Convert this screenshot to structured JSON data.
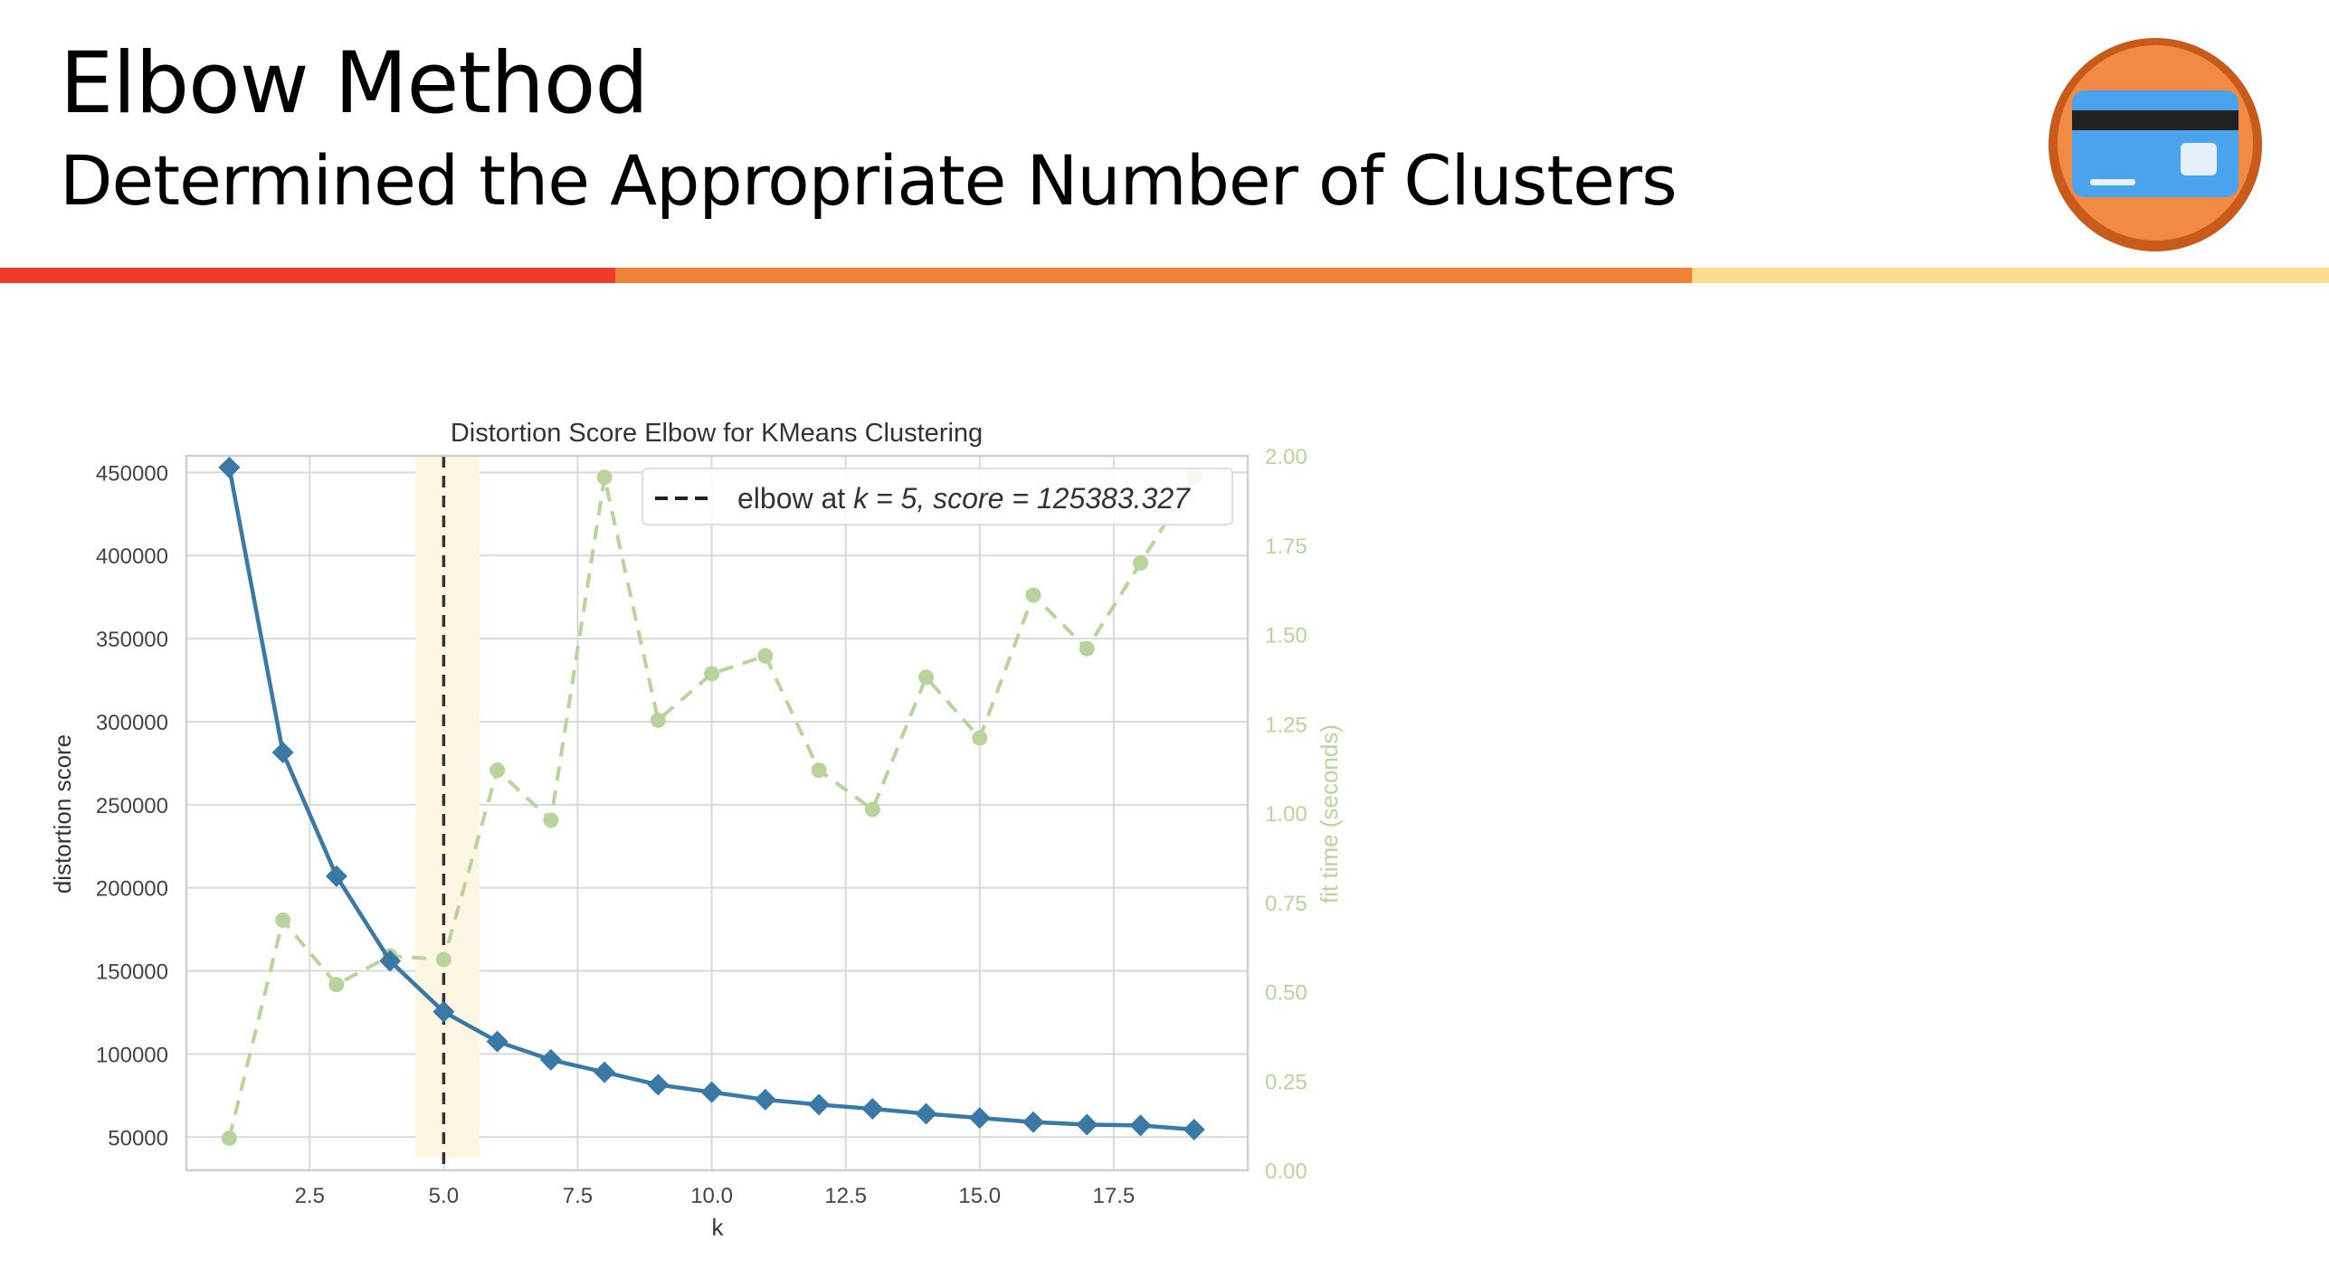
{
  "slide": {
    "title": "Elbow Method",
    "subtitle": "Determined the Appropriate Number of Clusters"
  },
  "colors": {
    "bar_red": "#ee3a2a",
    "bar_orange": "#f08236",
    "bar_yellow": "#fbdb8c",
    "distortion": "#3a78a6",
    "fit_time": "#b8d39b",
    "elbow_band": "#fdf6e3",
    "logo_orange": "#f08a44",
    "logo_card": "#4ba3ee"
  },
  "logo": {
    "icon": "credit-card-icon"
  },
  "chart_data": {
    "type": "line",
    "title": "Distortion Score Elbow for KMeans Clustering",
    "xlabel": "k",
    "ylabel": "distortion score",
    "y2label": "fit time (seconds)",
    "xlim": [
      0.2,
      20.0
    ],
    "ylim": [
      30000,
      460000
    ],
    "y2lim": [
      0.0,
      2.0
    ],
    "xticks": [
      "2.5",
      "5.0",
      "7.5",
      "10.0",
      "12.5",
      "15.0",
      "17.5"
    ],
    "yticks": [
      "50000",
      "100000",
      "150000",
      "200000",
      "250000",
      "300000",
      "350000",
      "400000",
      "450000"
    ],
    "y2ticks": [
      "0.00",
      "0.25",
      "0.50",
      "0.75",
      "1.00",
      "1.25",
      "1.50",
      "1.75",
      "2.00"
    ],
    "grid": true,
    "legend_position": "top-right",
    "elbow": {
      "k": 5,
      "score": 125383.327,
      "label_prefix": "elbow at ",
      "label_k": "k = 5, ",
      "label_score": "score = 125383.327"
    },
    "series": [
      {
        "axis": "left",
        "marker": "diamond",
        "x": [
          1,
          2,
          3,
          4,
          5,
          6,
          7,
          8,
          9,
          10,
          11,
          12,
          13,
          14,
          15,
          16,
          17,
          18,
          19
        ],
        "values": [
          453000,
          281500,
          207000,
          156000,
          125383,
          107500,
          96500,
          89000,
          81500,
          77000,
          72500,
          69500,
          67000,
          64000,
          61500,
          59000,
          57500,
          57000,
          54500
        ]
      },
      {
        "axis": "right",
        "marker": "circle",
        "x": [
          1,
          2,
          3,
          4,
          5,
          6,
          7,
          8,
          9,
          10,
          11,
          12,
          13,
          14,
          15,
          16,
          17,
          18,
          19
        ],
        "values": [
          0.09,
          0.7,
          0.52,
          0.6,
          0.59,
          1.12,
          0.98,
          1.94,
          1.26,
          1.39,
          1.44,
          1.12,
          1.01,
          1.38,
          1.21,
          1.61,
          1.46,
          1.7,
          1.94
        ]
      }
    ]
  }
}
